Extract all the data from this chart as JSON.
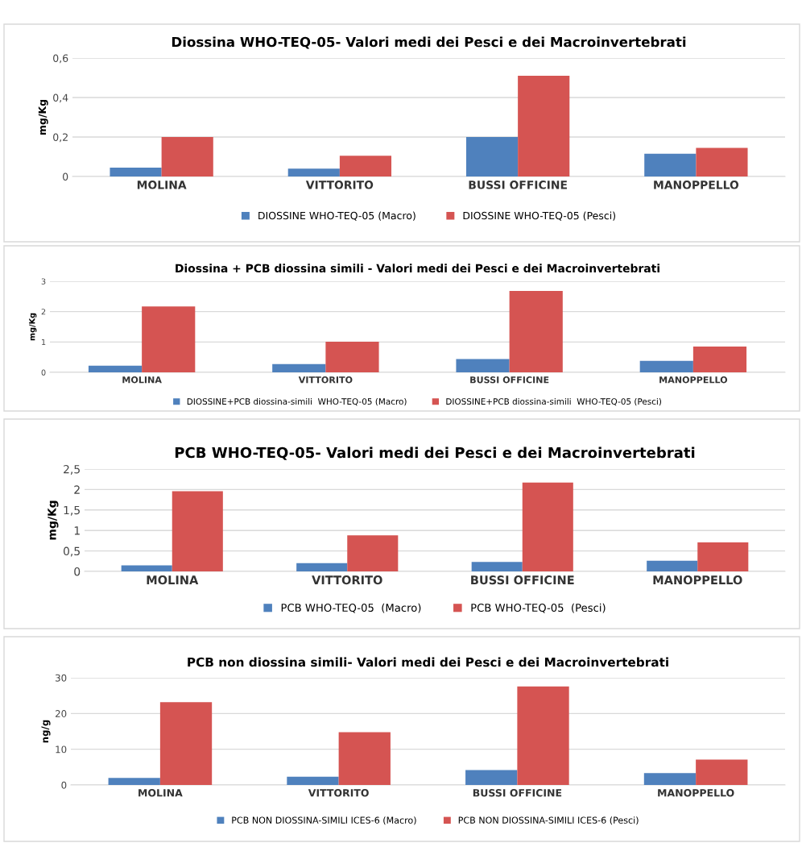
{
  "chart_data": [
    {
      "type": "bar",
      "title": "Diossina WHO-TEQ-05- Valori medi dei Pesci e dei Macroinvertebrati",
      "ylabel": "mg/Kg",
      "categories": [
        "MOLINA",
        "VITTORITO",
        "BUSSI OFFICINE",
        "MANOPPELLO"
      ],
      "series": [
        {
          "name": "DIOSSINE WHO-TEQ-05 (Macro)",
          "color": "#4f81bd",
          "values": [
            0.045,
            0.04,
            0.2,
            0.115
          ]
        },
        {
          "name": "DIOSSINE WHO-TEQ-05 (Pesci)",
          "color": "#d55452",
          "values": [
            0.2,
            0.105,
            0.51,
            0.145
          ]
        }
      ],
      "ylim": [
        0,
        0.6
      ],
      "yticks": [
        0,
        {
          "value": 0.2,
          "label": "0,2"
        },
        {
          "value": 0.4,
          "label": "0,4"
        },
        {
          "value": 0.6,
          "label": "0,6"
        }
      ],
      "grid": "y",
      "legend": "bottom"
    },
    {
      "type": "bar",
      "title": "Diossina + PCB diossina simili - Valori medi dei Pesci e dei Macroinvertebrati",
      "ylabel": "mg/Kg",
      "categories": [
        "MOLINA",
        "VITTORITO",
        "BUSSI OFFICINE",
        "MANOPPELLO"
      ],
      "series": [
        {
          "name": "DIOSSINE+PCB diossina-simili  WHO-TEQ-05 (Macro)",
          "color": "#4f81bd",
          "values": [
            0.22,
            0.27,
            0.44,
            0.38
          ]
        },
        {
          "name": "DIOSSINE+PCB diossina-simili  WHO-TEQ-05 (Pesci)",
          "color": "#d55452",
          "values": [
            2.17,
            1.01,
            2.68,
            0.85
          ]
        }
      ],
      "ylim": [
        0,
        3
      ],
      "yticks": [
        0,
        1,
        2,
        3
      ],
      "grid": "y",
      "legend": "bottom"
    },
    {
      "type": "bar",
      "title": "PCB WHO-TEQ-05- Valori medi dei Pesci e dei Macroinvertebrati",
      "ylabel": "mg/Kg",
      "categories": [
        "MOLINA",
        "VITTORITO",
        "BUSSI OFFICINE",
        "MANOPPELLO"
      ],
      "series": [
        {
          "name": "PCB WHO-TEQ-05  (Macro)",
          "color": "#4f81bd",
          "values": [
            0.15,
            0.2,
            0.23,
            0.26
          ]
        },
        {
          "name": "PCB WHO-TEQ-05  (Pesci)",
          "color": "#d55452",
          "values": [
            1.96,
            0.88,
            2.17,
            0.71
          ]
        }
      ],
      "ylim": [
        0,
        2.5
      ],
      "yticks": [
        0,
        {
          "value": 0.5,
          "label": "0,5"
        },
        1,
        {
          "value": 1.5,
          "label": "1,5"
        },
        2,
        {
          "value": 2.5,
          "label": "2,5"
        }
      ],
      "grid": "y",
      "legend": "bottom"
    },
    {
      "type": "bar",
      "title": "PCB non diossina simili- Valori medi dei Pesci e dei Macroinvertebrati",
      "ylabel": "ng/g",
      "categories": [
        "MOLINA",
        "VITTORITO",
        "BUSSI OFFICINE",
        "MANOPPELLO"
      ],
      "series": [
        {
          "name": "PCB NON DIOSSINA-SIMILI ICES-6 (Macro)",
          "color": "#4f81bd",
          "values": [
            2.0,
            2.3,
            4.2,
            3.3
          ]
        },
        {
          "name": "PCB NON DIOSSINA-SIMILI ICES-6 (Pesci)",
          "color": "#d55452",
          "values": [
            23.2,
            14.8,
            27.6,
            7.1
          ]
        }
      ],
      "ylim": [
        0,
        30
      ],
      "yticks": [
        0,
        10,
        20,
        30
      ],
      "grid": "y",
      "legend": "bottom"
    }
  ]
}
